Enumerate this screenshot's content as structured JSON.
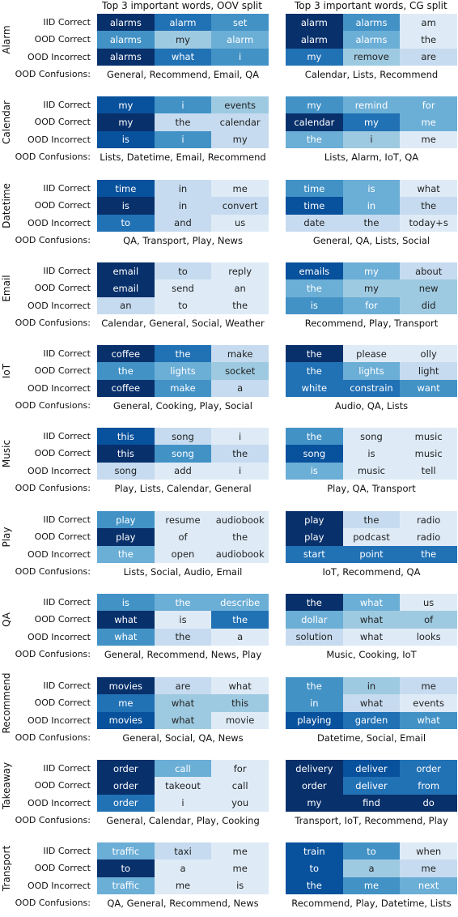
{
  "chart_data": {
    "type": "heatmap",
    "columns": [
      {
        "title": "Top 3 important words, OOV split"
      },
      {
        "title": "Top 3 important words, CG split"
      }
    ],
    "row_labels": [
      "IID Correct",
      "OOD Correct",
      "OOD Incorrect"
    ],
    "confusions_label": "OOD Confusions:",
    "groups": [
      {
        "domain": "Alarm",
        "oov": {
          "rows": [
            {
              "words": [
                "alarms",
                "alarm",
                "set"
              ],
              "shade": [
                9,
                7,
                6
              ]
            },
            {
              "words": [
                "alarms",
                "my",
                "alarm"
              ],
              "shade": [
                6,
                4,
                5
              ]
            },
            {
              "words": [
                "alarms",
                "what",
                "i"
              ],
              "shade": [
                9,
                7,
                6
              ]
            }
          ],
          "confusions": "General, Recommend, Email, QA"
        },
        "cg": {
          "rows": [
            {
              "words": [
                "alarm",
                "alarms",
                "am"
              ],
              "shade": [
                9,
                6,
                2
              ]
            },
            {
              "words": [
                "alarm",
                "alarms",
                "the"
              ],
              "shade": [
                9,
                5,
                2
              ]
            },
            {
              "words": [
                "my",
                "remove",
                "are"
              ],
              "shade": [
                7,
                4,
                3
              ]
            }
          ],
          "confusions": "Calendar, Lists, Recommend"
        }
      },
      {
        "domain": "Calendar",
        "oov": {
          "rows": [
            {
              "words": [
                "my",
                "i",
                "events"
              ],
              "shade": [
                8,
                6,
                4
              ]
            },
            {
              "words": [
                "my",
                "the",
                "calendar"
              ],
              "shade": [
                9,
                3,
                3
              ]
            },
            {
              "words": [
                "is",
                "i",
                "my"
              ],
              "shade": [
                8,
                6,
                3
              ]
            }
          ],
          "confusions": "Lists, Datetime, Email, Recommend"
        },
        "cg": {
          "rows": [
            {
              "words": [
                "my",
                "remind",
                "for"
              ],
              "shade": [
                6,
                5,
                5
              ]
            },
            {
              "words": [
                "calendar",
                "my",
                "me"
              ],
              "shade": [
                9,
                7,
                5
              ]
            },
            {
              "words": [
                "the",
                "i",
                "me"
              ],
              "shade": [
                5,
                4,
                2
              ]
            }
          ],
          "confusions": "Lists, Alarm, IoT, QA"
        }
      },
      {
        "domain": "Datetime",
        "oov": {
          "rows": [
            {
              "words": [
                "time",
                "in",
                "me"
              ],
              "shade": [
                8,
                3,
                2
              ]
            },
            {
              "words": [
                "is",
                "in",
                "convert"
              ],
              "shade": [
                9,
                3,
                3
              ]
            },
            {
              "words": [
                "to",
                "and",
                "us"
              ],
              "shade": [
                7,
                3,
                2
              ]
            }
          ],
          "confusions": "QA, Transport, Play, News"
        },
        "cg": {
          "rows": [
            {
              "words": [
                "time",
                "is",
                "what"
              ],
              "shade": [
                6,
                5,
                2
              ]
            },
            {
              "words": [
                "time",
                "in",
                "the"
              ],
              "shade": [
                8,
                5,
                3
              ]
            },
            {
              "words": [
                "date",
                "the",
                "today+s"
              ],
              "shade": [
                3,
                3,
                2
              ]
            }
          ],
          "confusions": "General, QA, Lists, Social"
        }
      },
      {
        "domain": "Email",
        "oov": {
          "rows": [
            {
              "words": [
                "email",
                "to",
                "reply"
              ],
              "shade": [
                9,
                3,
                2
              ]
            },
            {
              "words": [
                "email",
                "send",
                "an"
              ],
              "shade": [
                9,
                2,
                2
              ]
            },
            {
              "words": [
                "an",
                "to",
                "the"
              ],
              "shade": [
                3,
                2,
                2
              ]
            }
          ],
          "confusions": "Calendar, General, Social, Weather"
        },
        "cg": {
          "rows": [
            {
              "words": [
                "emails",
                "my",
                "about"
              ],
              "shade": [
                8,
                5,
                3
              ]
            },
            {
              "words": [
                "the",
                "my",
                "new"
              ],
              "shade": [
                5,
                4,
                4
              ]
            },
            {
              "words": [
                "is",
                "for",
                "did"
              ],
              "shade": [
                6,
                5,
                4
              ]
            }
          ],
          "confusions": "Recommend, Play, Transport"
        }
      },
      {
        "domain": "IoT",
        "oov": {
          "rows": [
            {
              "words": [
                "coffee",
                "the",
                "make"
              ],
              "shade": [
                9,
                7,
                3
              ]
            },
            {
              "words": [
                "the",
                "lights",
                "socket"
              ],
              "shade": [
                6,
                5,
                4
              ]
            },
            {
              "words": [
                "coffee",
                "make",
                "a"
              ],
              "shade": [
                9,
                6,
                3
              ]
            }
          ],
          "confusions": "General, Cooking, Play, Social"
        },
        "cg": {
          "rows": [
            {
              "words": [
                "the",
                "please",
                "olly"
              ],
              "shade": [
                9,
                2,
                2
              ]
            },
            {
              "words": [
                "the",
                "lights",
                "light"
              ],
              "shade": [
                7,
                5,
                3
              ]
            },
            {
              "words": [
                "white",
                "constrain",
                "want"
              ],
              "shade": [
                7,
                7,
                6
              ]
            }
          ],
          "confusions": "Audio, QA, Lists"
        }
      },
      {
        "domain": "Music",
        "oov": {
          "rows": [
            {
              "words": [
                "this",
                "song",
                "i"
              ],
              "shade": [
                8,
                3,
                2
              ]
            },
            {
              "words": [
                "this",
                "song",
                "the"
              ],
              "shade": [
                9,
                6,
                3
              ]
            },
            {
              "words": [
                "song",
                "add",
                "i"
              ],
              "shade": [
                3,
                2,
                2
              ]
            }
          ],
          "confusions": "Play, Lists, Calendar, General"
        },
        "cg": {
          "rows": [
            {
              "words": [
                "the",
                "song",
                "music"
              ],
              "shade": [
                6,
                2,
                2
              ]
            },
            {
              "words": [
                "song",
                "is",
                "music"
              ],
              "shade": [
                8,
                2,
                2
              ]
            },
            {
              "words": [
                "is",
                "music",
                "tell"
              ],
              "shade": [
                5,
                2,
                2
              ]
            }
          ],
          "confusions": "Play, QA, Transport"
        }
      },
      {
        "domain": "Play",
        "oov": {
          "rows": [
            {
              "words": [
                "play",
                "resume",
                "audiobook"
              ],
              "shade": [
                6,
                2,
                2
              ]
            },
            {
              "words": [
                "play",
                "of",
                "the"
              ],
              "shade": [
                9,
                2,
                2
              ]
            },
            {
              "words": [
                "the",
                "open",
                "audiobook"
              ],
              "shade": [
                5,
                2,
                2
              ]
            }
          ],
          "confusions": "Lists, Social, Audio, Email"
        },
        "cg": {
          "rows": [
            {
              "words": [
                "play",
                "the",
                "radio"
              ],
              "shade": [
                9,
                3,
                2
              ]
            },
            {
              "words": [
                "play",
                "podcast",
                "radio"
              ],
              "shade": [
                9,
                2,
                2
              ]
            },
            {
              "words": [
                "start",
                "point",
                "the"
              ],
              "shade": [
                7,
                7,
                7
              ]
            }
          ],
          "confusions": "IoT, Recommend, QA"
        }
      },
      {
        "domain": "QA",
        "oov": {
          "rows": [
            {
              "words": [
                "is",
                "the",
                "describe"
              ],
              "shade": [
                6,
                5,
                5
              ]
            },
            {
              "words": [
                "what",
                "is",
                "the"
              ],
              "shade": [
                9,
                2,
                7
              ]
            },
            {
              "words": [
                "what",
                "the",
                "a"
              ],
              "shade": [
                6,
                3,
                2
              ]
            }
          ],
          "confusions": "General, Recommend, News, Play"
        },
        "cg": {
          "rows": [
            {
              "words": [
                "the",
                "what",
                "us"
              ],
              "shade": [
                9,
                5,
                2
              ]
            },
            {
              "words": [
                "dollar",
                "what",
                "of"
              ],
              "shade": [
                5,
                4,
                4
              ]
            },
            {
              "words": [
                "solution",
                "what",
                "looks"
              ],
              "shade": [
                3,
                2,
                2
              ]
            }
          ],
          "confusions": "Music, Cooking, IoT"
        }
      },
      {
        "domain": "Recommend",
        "oov": {
          "rows": [
            {
              "words": [
                "movies",
                "are",
                "what"
              ],
              "shade": [
                9,
                3,
                2
              ]
            },
            {
              "words": [
                "me",
                "what",
                "this"
              ],
              "shade": [
                7,
                4,
                4
              ]
            },
            {
              "words": [
                "movies",
                "what",
                "movie"
              ],
              "shade": [
                8,
                4,
                2
              ]
            }
          ],
          "confusions": "General, Social, QA, News"
        },
        "cg": {
          "rows": [
            {
              "words": [
                "the",
                "in",
                "me"
              ],
              "shade": [
                6,
                4,
                3
              ]
            },
            {
              "words": [
                "in",
                "what",
                "events"
              ],
              "shade": [
                6,
                3,
                2
              ]
            },
            {
              "words": [
                "playing",
                "garden",
                "what"
              ],
              "shade": [
                8,
                7,
                6
              ]
            }
          ],
          "confusions": "Datetime, Social, Email"
        }
      },
      {
        "domain": "Takeaway",
        "oov": {
          "rows": [
            {
              "words": [
                "order",
                "call",
                "for"
              ],
              "shade": [
                9,
                5,
                2
              ]
            },
            {
              "words": [
                "order",
                "takeout",
                "call"
              ],
              "shade": [
                9,
                2,
                2
              ]
            },
            {
              "words": [
                "order",
                "i",
                "you"
              ],
              "shade": [
                7,
                2,
                2
              ]
            }
          ],
          "confusions": "General, Calendar, Play, Cooking"
        },
        "cg": {
          "rows": [
            {
              "words": [
                "delivery",
                "deliver",
                "order"
              ],
              "shade": [
                9,
                8,
                7
              ]
            },
            {
              "words": [
                "order",
                "deliver",
                "from"
              ],
              "shade": [
                9,
                7,
                7
              ]
            },
            {
              "words": [
                "my",
                "find",
                "do"
              ],
              "shade": [
                9,
                9,
                9
              ]
            }
          ],
          "confusions": "Transport, IoT, Recommend, Play"
        }
      },
      {
        "domain": "Transport",
        "oov": {
          "rows": [
            {
              "words": [
                "traffic",
                "taxi",
                "me"
              ],
              "shade": [
                5,
                3,
                2
              ]
            },
            {
              "words": [
                "to",
                "a",
                "me"
              ],
              "shade": [
                9,
                2,
                2
              ]
            },
            {
              "words": [
                "traffic",
                "me",
                "is"
              ],
              "shade": [
                5,
                2,
                2
              ]
            }
          ],
          "confusions": "QA, General, Recommend, News"
        },
        "cg": {
          "rows": [
            {
              "words": [
                "train",
                "to",
                "when"
              ],
              "shade": [
                8,
                6,
                2
              ]
            },
            {
              "words": [
                "to",
                "a",
                "me"
              ],
              "shade": [
                8,
                4,
                3
              ]
            },
            {
              "words": [
                "the",
                "me",
                "next"
              ],
              "shade": [
                8,
                6,
                5
              ]
            }
          ],
          "confusions": "Recommend, Play, Datetime, Lists"
        }
      }
    ],
    "colormap": [
      "#f7fbff",
      "#deebf7",
      "#c6dbef",
      "#9ecae1",
      "#6baed6",
      "#4292c6",
      "#2171b5",
      "#08519c",
      "#08306b"
    ]
  }
}
